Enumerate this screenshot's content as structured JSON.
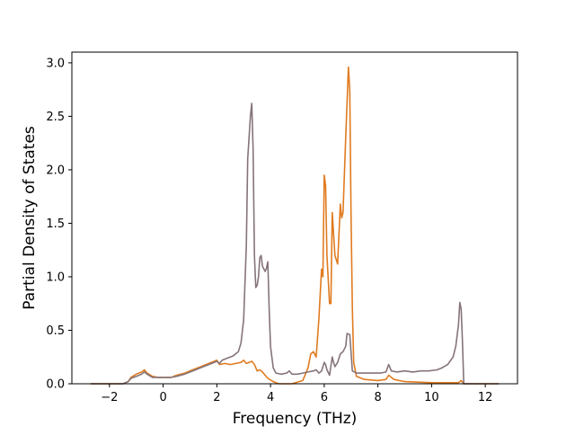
{
  "chart_data": {
    "type": "line",
    "title": "",
    "xlabel": "Frequency (THz)",
    "ylabel": "Partial Density of States",
    "xlim": [
      -3.4,
      13.2
    ],
    "ylim": [
      0,
      3.1
    ],
    "x_ticks": [
      -2,
      0,
      2,
      4,
      6,
      8,
      10,
      12
    ],
    "x_tick_labels": [
      "−2",
      "0",
      "2",
      "4",
      "6",
      "8",
      "10",
      "12"
    ],
    "y_ticks": [
      0,
      0.5,
      1.0,
      1.5,
      2.0,
      2.5,
      3.0
    ],
    "y_tick_labels": [
      "0.0",
      "0.5",
      "1.0",
      "1.5",
      "2.0",
      "2.5",
      "3.0"
    ],
    "grid": false,
    "legend": "none",
    "series": [
      {
        "color": "#e07b20",
        "points": [
          [
            -2.7,
            0.0
          ],
          [
            -1.5,
            0.0
          ],
          [
            -1.3,
            0.02
          ],
          [
            -1.2,
            0.06
          ],
          [
            -1.0,
            0.09
          ],
          [
            -0.8,
            0.11
          ],
          [
            -0.7,
            0.13
          ],
          [
            -0.6,
            0.1
          ],
          [
            -0.4,
            0.07
          ],
          [
            -0.2,
            0.06
          ],
          [
            0.0,
            0.06
          ],
          [
            0.3,
            0.06
          ],
          [
            0.5,
            0.08
          ],
          [
            0.8,
            0.1
          ],
          [
            1.1,
            0.13
          ],
          [
            1.4,
            0.16
          ],
          [
            1.7,
            0.19
          ],
          [
            1.9,
            0.21
          ],
          [
            2.0,
            0.22
          ],
          [
            2.1,
            0.18
          ],
          [
            2.3,
            0.19
          ],
          [
            2.5,
            0.18
          ],
          [
            2.7,
            0.19
          ],
          [
            2.9,
            0.2
          ],
          [
            3.0,
            0.22
          ],
          [
            3.1,
            0.19
          ],
          [
            3.2,
            0.2
          ],
          [
            3.3,
            0.21
          ],
          [
            3.4,
            0.18
          ],
          [
            3.5,
            0.12
          ],
          [
            3.6,
            0.13
          ],
          [
            3.7,
            0.11
          ],
          [
            3.8,
            0.08
          ],
          [
            3.9,
            0.05
          ],
          [
            4.1,
            0.02
          ],
          [
            4.3,
            0.0
          ],
          [
            4.8,
            0.0
          ],
          [
            5.2,
            0.03
          ],
          [
            5.4,
            0.15
          ],
          [
            5.5,
            0.28
          ],
          [
            5.6,
            0.3
          ],
          [
            5.7,
            0.25
          ],
          [
            5.8,
            0.6
          ],
          [
            5.9,
            1.07
          ],
          [
            5.95,
            1.0
          ],
          [
            6.0,
            1.95
          ],
          [
            6.05,
            1.85
          ],
          [
            6.1,
            1.2
          ],
          [
            6.2,
            0.75
          ],
          [
            6.25,
            0.75
          ],
          [
            6.3,
            1.6
          ],
          [
            6.35,
            1.4
          ],
          [
            6.4,
            1.2
          ],
          [
            6.5,
            1.12
          ],
          [
            6.6,
            1.68
          ],
          [
            6.65,
            1.55
          ],
          [
            6.7,
            1.6
          ],
          [
            6.8,
            2.3
          ],
          [
            6.9,
            2.96
          ],
          [
            6.95,
            2.75
          ],
          [
            7.0,
            1.6
          ],
          [
            7.05,
            0.7
          ],
          [
            7.1,
            0.2
          ],
          [
            7.2,
            0.07
          ],
          [
            7.5,
            0.04
          ],
          [
            8.0,
            0.03
          ],
          [
            8.3,
            0.04
          ],
          [
            8.4,
            0.08
          ],
          [
            8.6,
            0.04
          ],
          [
            9.0,
            0.02
          ],
          [
            10.0,
            0.01
          ],
          [
            11.0,
            0.01
          ],
          [
            11.1,
            0.03
          ],
          [
            11.2,
            0.0
          ],
          [
            12.5,
            0.0
          ]
        ]
      },
      {
        "color": "#857479",
        "points": [
          [
            -2.7,
            0.0
          ],
          [
            -1.5,
            0.0
          ],
          [
            -1.3,
            0.02
          ],
          [
            -1.2,
            0.05
          ],
          [
            -1.0,
            0.07
          ],
          [
            -0.8,
            0.09
          ],
          [
            -0.7,
            0.11
          ],
          [
            -0.6,
            0.09
          ],
          [
            -0.4,
            0.06
          ],
          [
            -0.2,
            0.06
          ],
          [
            0.0,
            0.06
          ],
          [
            0.3,
            0.06
          ],
          [
            0.5,
            0.07
          ],
          [
            0.8,
            0.09
          ],
          [
            1.1,
            0.12
          ],
          [
            1.4,
            0.15
          ],
          [
            1.7,
            0.18
          ],
          [
            1.9,
            0.2
          ],
          [
            2.0,
            0.21
          ],
          [
            2.1,
            0.19
          ],
          [
            2.2,
            0.22
          ],
          [
            2.4,
            0.24
          ],
          [
            2.6,
            0.26
          ],
          [
            2.8,
            0.3
          ],
          [
            2.9,
            0.38
          ],
          [
            3.0,
            0.6
          ],
          [
            3.1,
            1.3
          ],
          [
            3.15,
            2.1
          ],
          [
            3.2,
            2.3
          ],
          [
            3.25,
            2.5
          ],
          [
            3.3,
            2.62
          ],
          [
            3.35,
            2.2
          ],
          [
            3.4,
            1.2
          ],
          [
            3.45,
            0.9
          ],
          [
            3.5,
            0.92
          ],
          [
            3.55,
            1.0
          ],
          [
            3.6,
            1.18
          ],
          [
            3.65,
            1.2
          ],
          [
            3.7,
            1.1
          ],
          [
            3.8,
            1.05
          ],
          [
            3.85,
            1.08
          ],
          [
            3.9,
            1.14
          ],
          [
            3.95,
            0.7
          ],
          [
            4.0,
            0.35
          ],
          [
            4.1,
            0.15
          ],
          [
            4.2,
            0.1
          ],
          [
            4.4,
            0.09
          ],
          [
            4.6,
            0.1
          ],
          [
            4.7,
            0.12
          ],
          [
            4.8,
            0.09
          ],
          [
            5.0,
            0.09
          ],
          [
            5.2,
            0.1
          ],
          [
            5.4,
            0.11
          ],
          [
            5.6,
            0.12
          ],
          [
            5.7,
            0.13
          ],
          [
            5.8,
            0.1
          ],
          [
            5.9,
            0.12
          ],
          [
            6.0,
            0.2
          ],
          [
            6.05,
            0.18
          ],
          [
            6.1,
            0.13
          ],
          [
            6.2,
            0.08
          ],
          [
            6.3,
            0.25
          ],
          [
            6.35,
            0.2
          ],
          [
            6.4,
            0.16
          ],
          [
            6.5,
            0.2
          ],
          [
            6.6,
            0.28
          ],
          [
            6.7,
            0.3
          ],
          [
            6.8,
            0.35
          ],
          [
            6.85,
            0.47
          ],
          [
            6.95,
            0.46
          ],
          [
            7.0,
            0.3
          ],
          [
            7.05,
            0.12
          ],
          [
            7.2,
            0.1
          ],
          [
            7.5,
            0.1
          ],
          [
            7.8,
            0.1
          ],
          [
            8.1,
            0.1
          ],
          [
            8.3,
            0.11
          ],
          [
            8.4,
            0.18
          ],
          [
            8.5,
            0.12
          ],
          [
            8.7,
            0.11
          ],
          [
            9.0,
            0.12
          ],
          [
            9.3,
            0.11
          ],
          [
            9.6,
            0.12
          ],
          [
            9.9,
            0.12
          ],
          [
            10.2,
            0.13
          ],
          [
            10.4,
            0.15
          ],
          [
            10.6,
            0.18
          ],
          [
            10.8,
            0.25
          ],
          [
            10.9,
            0.35
          ],
          [
            11.0,
            0.55
          ],
          [
            11.05,
            0.76
          ],
          [
            11.1,
            0.7
          ],
          [
            11.15,
            0.4
          ],
          [
            11.2,
            0.0
          ],
          [
            12.5,
            0.0
          ]
        ]
      }
    ]
  }
}
